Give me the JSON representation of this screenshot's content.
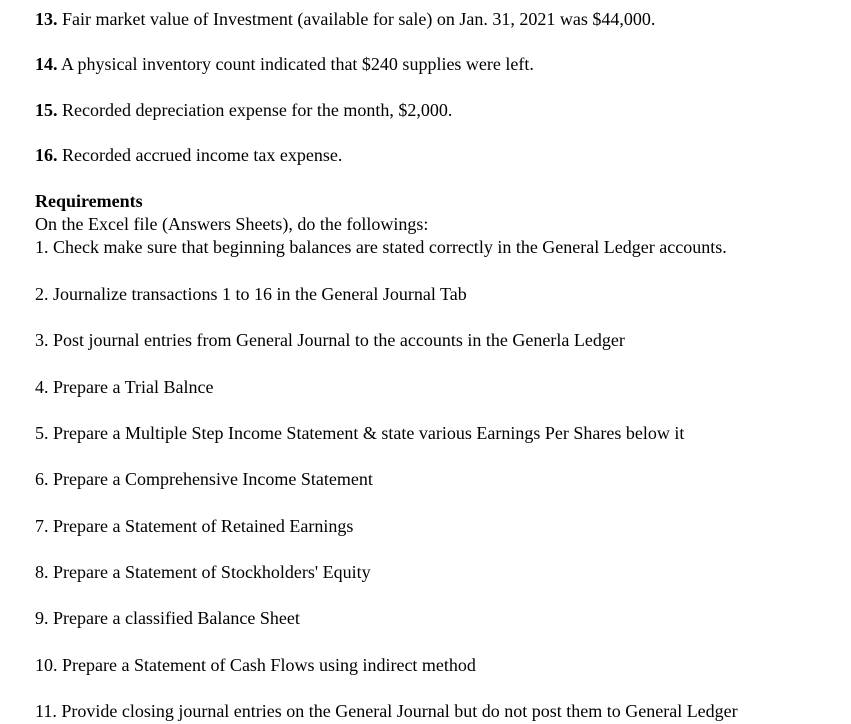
{
  "items": {
    "13": {
      "num": "13.",
      "text": " Fair market value of Investment (available for sale) on Jan. 31, 2021 was $44,000."
    },
    "14": {
      "num": "14.",
      "text": " A physical inventory count indicated that $240 supplies were left."
    },
    "15": {
      "num": "15.",
      "text": " Recorded depreciation expense for the month, $2,000."
    },
    "16": {
      "num": "16.",
      "text": " Recorded accrued income tax expense."
    }
  },
  "requirements": {
    "heading": "Requirements",
    "intro": "On the Excel file (Answers Sheets), do the followings:",
    "list": {
      "1": "1. Check make sure that beginning balances are stated correctly in the General Ledger accounts.",
      "2": "2. Journalize transactions 1 to 16 in the General Journal Tab",
      "3": "3. Post journal entries from General Journal to the accounts in the Generla Ledger",
      "4": "4. Prepare a Trial Balnce",
      "5": "5. Prepare a Multiple Step Income Statement & state various Earnings Per Shares below it",
      "6": "6. Prepare a Comprehensive Income Statement",
      "7": "7. Prepare a Statement of Retained Earnings",
      "8": "8. Prepare a Statement of Stockholders' Equity",
      "9": "9. Prepare a classified Balance Sheet",
      "10": "10. Prepare a Statement of Cash Flows using indirect method",
      "11": "11. Provide closing journal entries on the General Journal but do not post them to General Ledger"
    }
  }
}
